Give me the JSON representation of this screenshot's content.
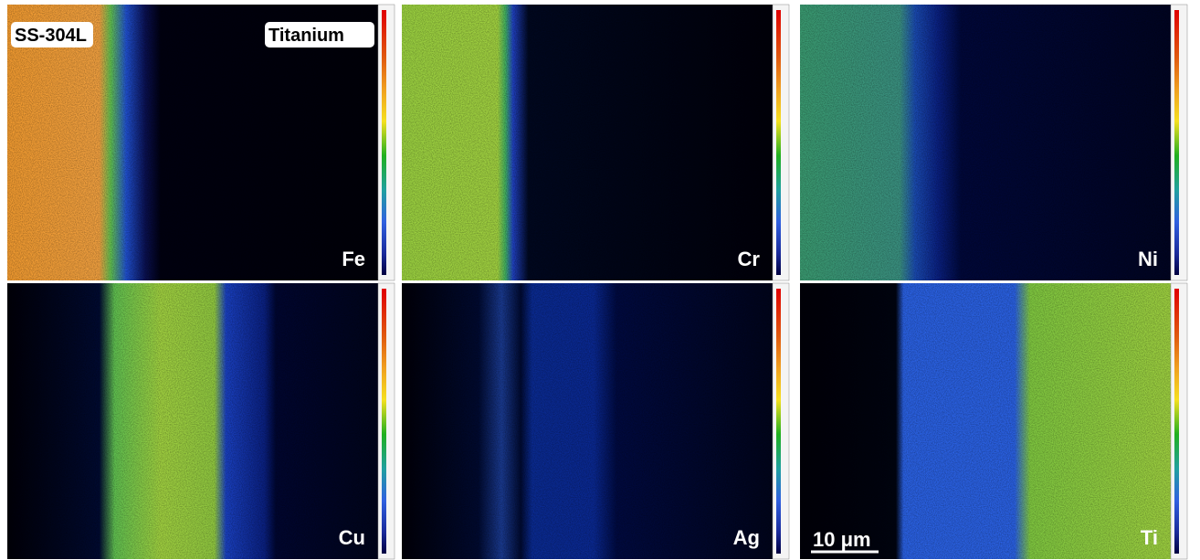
{
  "annotations": {
    "left": "SS-304L",
    "right": "Titanium"
  },
  "panels": [
    {
      "label": "Fe"
    },
    {
      "label": "Cr"
    },
    {
      "label": "Ni"
    },
    {
      "label": "Cu"
    },
    {
      "label": "Ag"
    },
    {
      "label": "Ti"
    }
  ],
  "scale_bar": "10 μm"
}
